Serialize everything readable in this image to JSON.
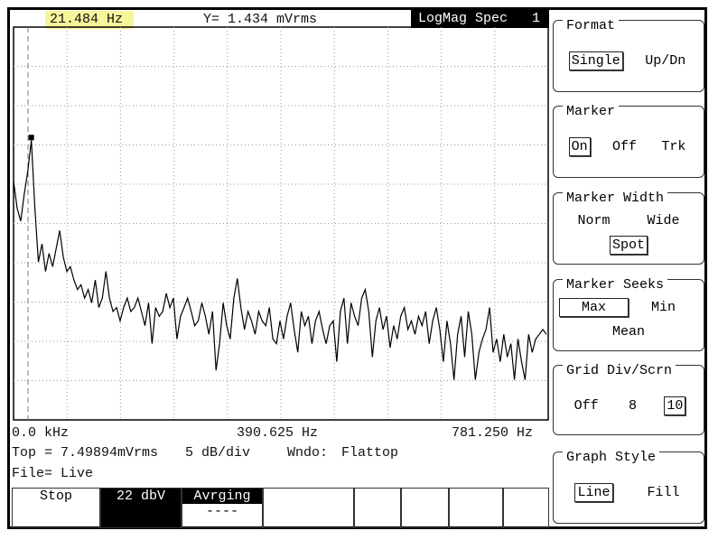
{
  "header": {
    "marker_x": "21.484 Hz",
    "marker_y": "Y= 1.434 mVrms",
    "trace_title": "LogMag Spec",
    "trace_number": "1"
  },
  "graph": {
    "x_start": "0.0 kHz",
    "x_mid": "390.625 Hz",
    "x_end": "781.250 Hz",
    "ylim": [
      -50,
      0
    ],
    "trace_color": "#000000",
    "values": [
      -19.6,
      -23.0,
      -24.7,
      -21.3,
      -18.4,
      -14.4,
      -23.0,
      -29.9,
      -27.6,
      -31.1,
      -28.8,
      -30.5,
      -28.2,
      -25.9,
      -29.3,
      -31.1,
      -30.5,
      -32.2,
      -33.4,
      -32.8,
      -34.5,
      -33.4,
      -35.1,
      -32.2,
      -35.7,
      -34.5,
      -31.1,
      -34.5,
      -36.2,
      -35.7,
      -37.4,
      -35.7,
      -34.5,
      -36.2,
      -35.7,
      -34.5,
      -36.2,
      -38.0,
      -35.1,
      -40.3,
      -35.7,
      -36.8,
      -36.2,
      -33.9,
      -35.7,
      -34.5,
      -39.7,
      -36.8,
      -35.7,
      -34.5,
      -36.2,
      -38.0,
      -37.4,
      -35.1,
      -36.8,
      -39.1,
      -36.2,
      -43.7,
      -40.3,
      -35.1,
      -38.0,
      -39.7,
      -34.5,
      -32.0,
      -35.7,
      -38.5,
      -36.2,
      -37.4,
      -39.1,
      -36.2,
      -37.4,
      -38.0,
      -35.7,
      -39.7,
      -40.3,
      -37.4,
      -39.7,
      -36.8,
      -35.1,
      -38.5,
      -41.4,
      -36.2,
      -38.0,
      -36.8,
      -40.3,
      -37.4,
      -36.2,
      -38.5,
      -40.3,
      -38.0,
      -37.4,
      -42.6,
      -36.2,
      -34.5,
      -40.3,
      -35.1,
      -36.8,
      -38.0,
      -34.5,
      -33.4,
      -36.2,
      -42.0,
      -37.4,
      -35.7,
      -38.5,
      -36.8,
      -40.8,
      -38.0,
      -39.7,
      -36.8,
      -35.7,
      -38.5,
      -37.4,
      -39.1,
      -36.8,
      -38.0,
      -36.2,
      -40.3,
      -37.4,
      -35.7,
      -38.5,
      -42.6,
      -37.4,
      -40.3,
      -44.9,
      -39.1,
      -36.8,
      -42.0,
      -36.2,
      -39.1,
      -44.9,
      -41.4,
      -39.7,
      -38.5,
      -35.7,
      -41.4,
      -39.7,
      -42.6,
      -39.1,
      -42.0,
      -40.3,
      -44.9,
      -39.7,
      -42.6,
      -44.9,
      -39.1,
      -41.4,
      -39.7,
      -39.1,
      -38.5,
      -39.1
    ]
  },
  "status": {
    "top": "Top = 7.49894mVrms",
    "scale": "5 dB/div",
    "window_label": "Wndo:",
    "window": "Flattop",
    "file": "File= Live"
  },
  "softkeys": [
    {
      "label": "Stop"
    },
    {
      "label": "22 dbV"
    },
    {
      "label": "Avrging",
      "sub": "----"
    }
  ],
  "menus": [
    {
      "title": "Format",
      "options": [
        "Single",
        "Up/Dn"
      ],
      "selected": 0
    },
    {
      "title": "Marker",
      "options": [
        "On",
        "Off",
        "Trk"
      ],
      "selected": 0
    },
    {
      "title": "Marker Width",
      "options": [
        "Norm",
        "Wide",
        "Spot"
      ],
      "selected": 2
    },
    {
      "title": "Marker Seeks",
      "options": [
        "Max",
        "Min",
        "Mean"
      ],
      "selected": 0
    },
    {
      "title": "Grid Div/Scrn",
      "options": [
        "Off",
        "8",
        "10"
      ],
      "selected": 2
    },
    {
      "title": "Graph Style",
      "options": [
        "Line",
        "Fill"
      ],
      "selected": 0
    }
  ]
}
